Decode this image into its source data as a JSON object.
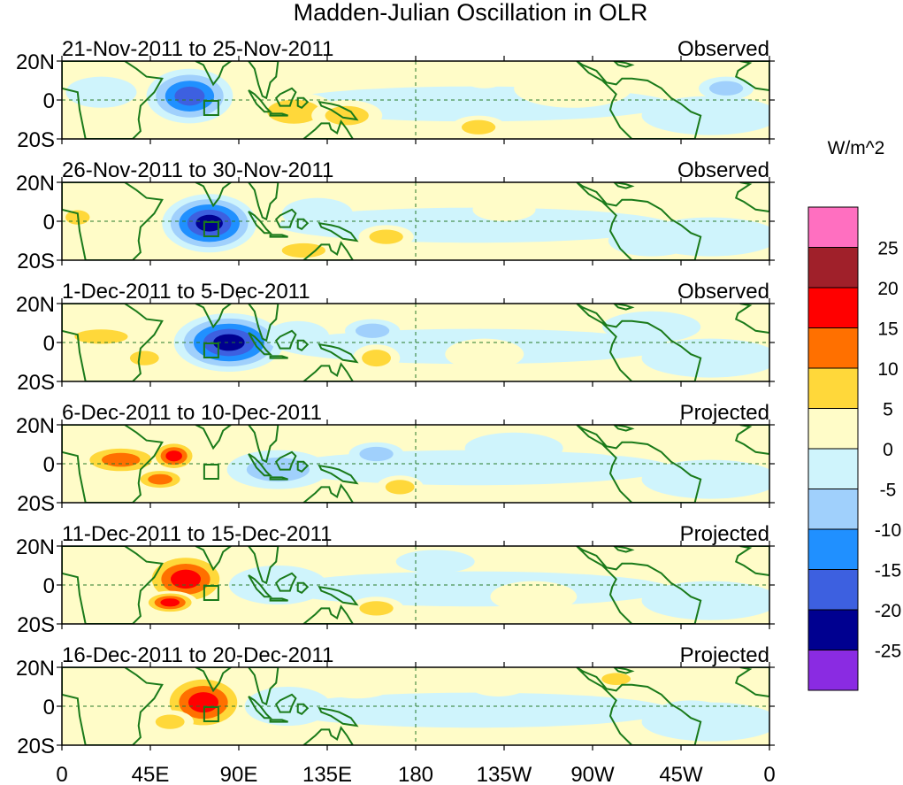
{
  "chart_data": {
    "type": "heatmap",
    "title": "Madden-Julian Oscillation in OLR",
    "units": "W/m^2",
    "legend_position": "right",
    "legend_levels": [
      {
        "label": "",
        "color": "#ff6fc0"
      },
      {
        "label": "25",
        "color": "#a0202a"
      },
      {
        "label": "20",
        "color": "#ff0000"
      },
      {
        "label": "15",
        "color": "#ff7000"
      },
      {
        "label": "10",
        "color": "#ffd83a"
      },
      {
        "label": "5",
        "color": "#fffcc8"
      },
      {
        "label": "0",
        "color": "#cff4fc"
      },
      {
        "label": "-5",
        "color": "#a0d0fc"
      },
      {
        "label": "-10",
        "color": "#2090ff"
      },
      {
        "label": "-15",
        "color": "#3d60e0"
      },
      {
        "label": "-20",
        "color": "#000090"
      },
      {
        "label": "-25",
        "color": "#8a2be2"
      }
    ],
    "x_ticks": [
      "0",
      "45E",
      "90E",
      "135E",
      "180",
      "135W",
      "90W",
      "45W",
      "0"
    ],
    "x_tick_values": [
      0,
      45,
      90,
      135,
      180,
      225,
      270,
      315,
      360
    ],
    "y_ticks": [
      "20N",
      "0",
      "20S"
    ],
    "y_tick_values": [
      20,
      0,
      -20
    ],
    "xlim": [
      0,
      360
    ],
    "ylim": [
      -20,
      20
    ],
    "panels": [
      {
        "period": "21-Nov-2011 to 25-Nov-2011",
        "status": "Observed",
        "box_lon": 76,
        "anomalies": [
          {
            "lon": 65,
            "lat": 2,
            "rx": 22,
            "ry": 14,
            "v": -22
          },
          {
            "lon": 118,
            "lat": -6,
            "rx": 22,
            "ry": 10,
            "v": 10
          },
          {
            "lon": 145,
            "lat": -8,
            "rx": 18,
            "ry": 8,
            "v": 8
          },
          {
            "lon": 212,
            "lat": -14,
            "rx": 14,
            "ry": 6,
            "v": 10
          },
          {
            "lon": 215,
            "lat": 12,
            "rx": 12,
            "ry": 6,
            "v": 5
          },
          {
            "lon": 338,
            "lat": 6,
            "rx": 14,
            "ry": 6,
            "v": -12
          },
          {
            "lon": 20,
            "lat": 4,
            "rx": 18,
            "ry": 8,
            "v": -4
          },
          {
            "lon": 260,
            "lat": 6,
            "rx": 30,
            "ry": 10,
            "v": 3
          }
        ]
      },
      {
        "period": "26-Nov-2011 to 30-Nov-2011",
        "status": "Observed",
        "box_lon": 76,
        "anomalies": [
          {
            "lon": 75,
            "lat": -1,
            "rx": 24,
            "ry": 15,
            "v": -26
          },
          {
            "lon": 130,
            "lat": 4,
            "rx": 18,
            "ry": 8,
            "v": -6
          },
          {
            "lon": 123,
            "lat": -15,
            "rx": 18,
            "ry": 6,
            "v": 8
          },
          {
            "lon": 165,
            "lat": -8,
            "rx": 14,
            "ry": 6,
            "v": 8
          },
          {
            "lon": 225,
            "lat": 6,
            "rx": 16,
            "ry": 6,
            "v": 6
          },
          {
            "lon": 8,
            "lat": 2,
            "rx": 10,
            "ry": 6,
            "v": 8
          },
          {
            "lon": 30,
            "lat": -6,
            "rx": 14,
            "ry": 8,
            "v": 4
          },
          {
            "lon": 300,
            "lat": -10,
            "rx": 22,
            "ry": 8,
            "v": -3
          }
        ]
      },
      {
        "period": "1-Dec-2011 to 5-Dec-2011",
        "status": "Observed",
        "box_lon": 76,
        "anomalies": [
          {
            "lon": 85,
            "lat": 0,
            "rx": 28,
            "ry": 15,
            "v": -24
          },
          {
            "lon": 20,
            "lat": 3,
            "rx": 22,
            "ry": 6,
            "v": 10
          },
          {
            "lon": 42,
            "lat": -8,
            "rx": 12,
            "ry": 6,
            "v": 12
          },
          {
            "lon": 160,
            "lat": -8,
            "rx": 12,
            "ry": 7,
            "v": 10
          },
          {
            "lon": 158,
            "lat": 6,
            "rx": 14,
            "ry": 6,
            "v": -12
          },
          {
            "lon": 120,
            "lat": 3,
            "rx": 16,
            "ry": 8,
            "v": -6
          },
          {
            "lon": 215,
            "lat": -6,
            "rx": 20,
            "ry": 8,
            "v": 4
          },
          {
            "lon": 300,
            "lat": 8,
            "rx": 25,
            "ry": 8,
            "v": -3
          }
        ]
      },
      {
        "period": "6-Dec-2011 to 10-Dec-2011",
        "status": "Projected",
        "box_lon": 76,
        "anomalies": [
          {
            "lon": 30,
            "lat": 2,
            "rx": 22,
            "ry": 8,
            "v": 13
          },
          {
            "lon": 57,
            "lat": 4,
            "rx": 12,
            "ry": 8,
            "v": 18
          },
          {
            "lon": 50,
            "lat": -8,
            "rx": 14,
            "ry": 6,
            "v": 16
          },
          {
            "lon": 110,
            "lat": -3,
            "rx": 26,
            "ry": 10,
            "v": -12
          },
          {
            "lon": 160,
            "lat": 5,
            "rx": 14,
            "ry": 6,
            "v": -10
          },
          {
            "lon": 172,
            "lat": -12,
            "rx": 12,
            "ry": 6,
            "v": 8
          },
          {
            "lon": 230,
            "lat": 8,
            "rx": 25,
            "ry": 8,
            "v": -4
          },
          {
            "lon": 283,
            "lat": 10,
            "rx": 15,
            "ry": 6,
            "v": 5
          }
        ]
      },
      {
        "period": "11-Dec-2011 to 15-Dec-2011",
        "status": "Projected",
        "box_lon": 76,
        "anomalies": [
          {
            "lon": 63,
            "lat": 3,
            "rx": 22,
            "ry": 14,
            "v": 20
          },
          {
            "lon": 55,
            "lat": -9,
            "rx": 14,
            "ry": 6,
            "v": 18
          },
          {
            "lon": 25,
            "lat": 0,
            "rx": 18,
            "ry": 6,
            "v": 6
          },
          {
            "lon": 110,
            "lat": 0,
            "rx": 25,
            "ry": 10,
            "v": -6
          },
          {
            "lon": 160,
            "lat": -12,
            "rx": 14,
            "ry": 6,
            "v": 8
          },
          {
            "lon": 190,
            "lat": 12,
            "rx": 20,
            "ry": 6,
            "v": -4
          },
          {
            "lon": 240,
            "lat": -6,
            "rx": 22,
            "ry": 8,
            "v": 3
          }
        ]
      },
      {
        "period": "16-Dec-2011 to 20-Dec-2011",
        "status": "Projected",
        "box_lon": 76,
        "anomalies": [
          {
            "lon": 72,
            "lat": 2,
            "rx": 22,
            "ry": 15,
            "v": 20
          },
          {
            "lon": 55,
            "lat": -8,
            "rx": 12,
            "ry": 6,
            "v": 12
          },
          {
            "lon": 115,
            "lat": 0,
            "rx": 22,
            "ry": 10,
            "v": -6
          },
          {
            "lon": 150,
            "lat": 10,
            "rx": 18,
            "ry": 6,
            "v": 6
          },
          {
            "lon": 222,
            "lat": 10,
            "rx": 14,
            "ry": 5,
            "v": 6
          },
          {
            "lon": 282,
            "lat": 14,
            "rx": 12,
            "ry": 5,
            "v": 8
          },
          {
            "lon": 320,
            "lat": -5,
            "rx": 20,
            "ry": 8,
            "v": -3
          }
        ]
      }
    ]
  }
}
